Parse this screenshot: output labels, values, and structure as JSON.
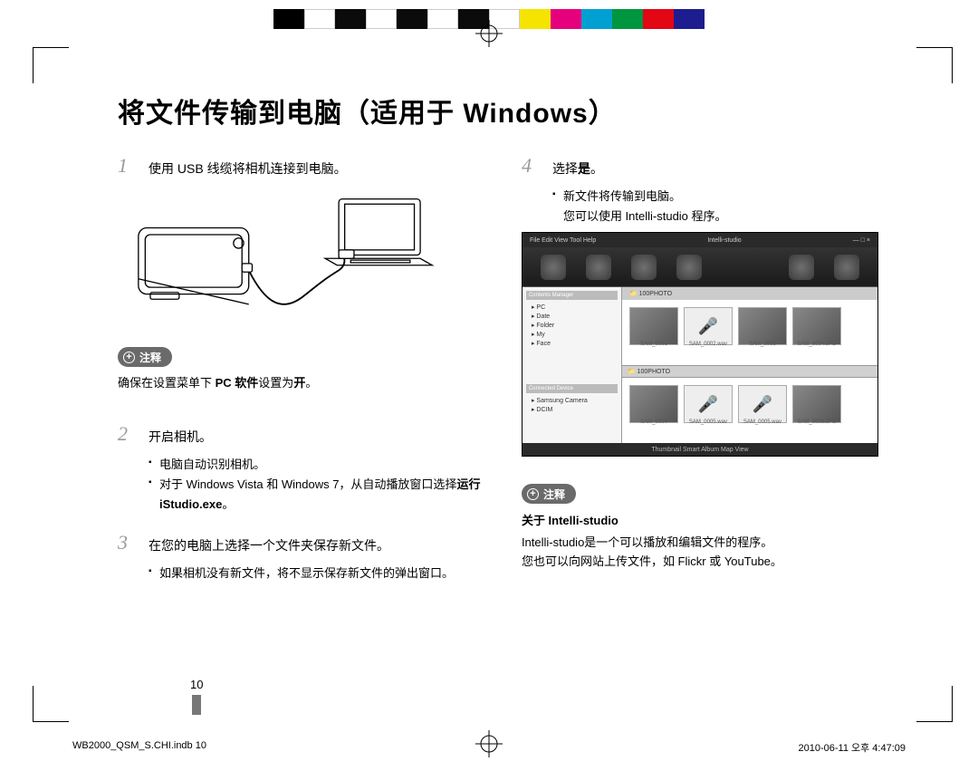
{
  "colorbar": [
    "#000000",
    "#ffffff",
    "#0b0b0b",
    "#ffffff",
    "#0b0b0b",
    "#ffffff",
    "#0b0b0b",
    "#ffffff",
    "#f4e400",
    "#e6007e",
    "#00a0d2",
    "#009640",
    "#e30613",
    "#1d1d8f"
  ],
  "title": "将文件传输到电脑（适用于 Windows）",
  "step1": {
    "num": "1",
    "title": "使用 USB 线缆将相机连接到电脑。"
  },
  "note1": {
    "label": "注释",
    "text_prefix": "确保在设置菜单下 ",
    "text_bold1": "PC 软件",
    "text_mid": "设置为",
    "text_bold2": "开",
    "text_suffix": "。"
  },
  "step2": {
    "num": "2",
    "title": "开启相机。",
    "b1": "电脑自动识别相机。",
    "b2_prefix": "对于 Windows Vista 和 Windows 7，从自动播放窗口选择",
    "b2_bold": "运行 iStudio.exe",
    "b2_suffix": "。"
  },
  "step3": {
    "num": "3",
    "title": "在您的电脑上选择一个文件夹保存新文件。",
    "b1": "如果相机没有新文件，将不显示保存新文件的弹出窗口。"
  },
  "step4": {
    "num": "4",
    "title_prefix": "选择",
    "title_bold": "是",
    "title_suffix": "。",
    "b1": "新文件将传输到电脑。",
    "b2": "您可以使用 Intelli-studio 程序。"
  },
  "screenshot": {
    "menubar_title": "Intelli-studio",
    "menu_items": [
      "File",
      "Edit",
      "View",
      "Tool",
      "Help"
    ],
    "location": "100PHOTO",
    "sidebar_header1": "Contents Manager",
    "sidebar_rows1": [
      "PC",
      "Date",
      "Folder",
      "My",
      "Face"
    ],
    "sidebar_header2": "Connected Device",
    "sidebar_rows2": [
      "Samsung Camera",
      "DCIM"
    ],
    "thumb_labels": [
      "SAM_0001",
      "SAM_0002.wav",
      "SAM_0003",
      "SAM_0004.JPG",
      "SAM_0004",
      "SAM_0005.wav",
      "SAM_0005.wav",
      "SAM_0006.JPG"
    ],
    "footer_items": [
      "Thumbnail",
      "Smart Album",
      "Map View"
    ]
  },
  "note2": {
    "label": "注释",
    "heading": "关于 Intelli-studio",
    "line1": "Intelli-studio是一个可以播放和编辑文件的程序。",
    "line2": "您也可以向网站上传文件，如 Flickr 或 YouTube。"
  },
  "page_number": "10",
  "footer_left": "WB2000_QSM_S.CHI.indb   10",
  "footer_right": "2010-06-11   오후 4:47:09"
}
